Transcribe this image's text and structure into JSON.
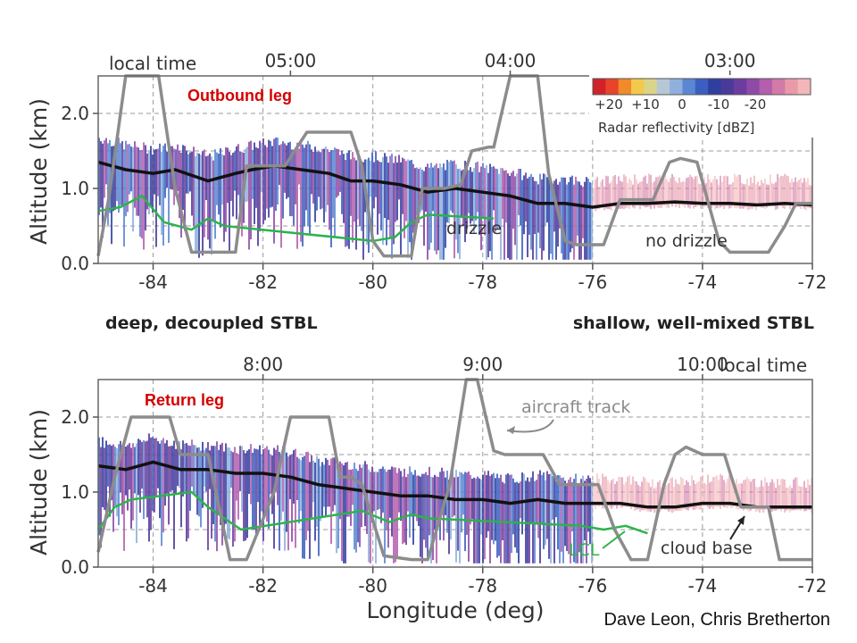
{
  "credit": "Dave Leon, Chris Bretherton",
  "regimes": {
    "left": "deep, decoupled STBL",
    "right": "shallow, well-mixed STBL"
  },
  "colorbar": {
    "title": "Radar reflectivity [dBZ]",
    "tick_labels": [
      "+20",
      "+10",
      "0",
      "-10",
      "-20"
    ],
    "colors": [
      "#d1222a",
      "#e8432b",
      "#f08a2a",
      "#f2c94c",
      "#d9d48a",
      "#b7c7d6",
      "#8fb0dc",
      "#5b86d2",
      "#3b5fc0",
      "#2f3fa0",
      "#4a3a9a",
      "#6b3d9e",
      "#8f4aa6",
      "#b35fae",
      "#d27aa8",
      "#e89aa8",
      "#f3b7b9"
    ]
  },
  "panels": [
    {
      "id": "outbound",
      "leg_label": "Outbound leg",
      "time_axis_label": "local time",
      "time_ticks": [
        {
          "lon": -81.5,
          "label": "05:00"
        },
        {
          "lon": -77.5,
          "label": "04:00"
        },
        {
          "lon": -73.5,
          "label": "03:00"
        }
      ],
      "annotations": {
        "drizzle": "drizzle",
        "no_drizzle": "no drizzle"
      }
    },
    {
      "id": "return",
      "leg_label": "Return leg",
      "time_axis_label": "local time",
      "time_ticks": [
        {
          "lon": -82.0,
          "label": "8:00"
        },
        {
          "lon": -78.0,
          "label": "9:00"
        },
        {
          "lon": -74.0,
          "label": "10:00"
        }
      ],
      "annotations": {
        "aircraft_track": "aircraft track",
        "lcl": "LCL",
        "cloud_base": "cloud base"
      }
    }
  ],
  "chart_data": [
    {
      "type": "line",
      "title": "Outbound leg",
      "xlabel": "",
      "ylabel": "Altitude (km)",
      "xlim": [
        -85,
        -72
      ],
      "ylim": [
        0.0,
        2.5
      ],
      "x_ticks": [
        -84,
        -82,
        -80,
        -78,
        -76,
        -74,
        -72
      ],
      "x_tick_labels": [
        "-84",
        "-82",
        "-80",
        "-78",
        "-76",
        "-74",
        "-72"
      ],
      "y_ticks": [
        0.0,
        1.0,
        2.0
      ],
      "y_tick_labels": [
        "0.0",
        "1.0",
        "2.0"
      ],
      "grid": "dashed",
      "series": [
        {
          "name": "aircraft track",
          "x": [
            -85.0,
            -84.8,
            -84.5,
            -84.3,
            -83.9,
            -83.6,
            -83.3,
            -82.5,
            -82.3,
            -81.8,
            -81.6,
            -81.2,
            -80.4,
            -80.2,
            -80.0,
            -79.8,
            -79.3,
            -79.1,
            -78.7,
            -78.4,
            -78.2,
            -77.9,
            -77.8,
            -77.5,
            -77.2,
            -77.0,
            -76.8,
            -76.5,
            -76.3,
            -75.8,
            -75.5,
            -75.3,
            -74.9,
            -74.6,
            -74.4,
            -74.1,
            -73.7,
            -73.5,
            -73.3,
            -72.8,
            -72.5,
            -72.3,
            -72.0
          ],
          "y": [
            0.1,
            0.9,
            2.6,
            2.6,
            2.6,
            1.0,
            0.15,
            0.15,
            1.3,
            1.3,
            1.3,
            1.75,
            1.75,
            1.3,
            0.3,
            0.1,
            0.1,
            1.0,
            1.0,
            1.05,
            1.5,
            1.55,
            1.55,
            2.6,
            2.6,
            2.6,
            1.2,
            0.3,
            0.25,
            0.25,
            0.85,
            0.85,
            0.85,
            1.35,
            1.4,
            1.35,
            0.3,
            0.15,
            0.15,
            0.15,
            0.5,
            0.8,
            0.8
          ]
        },
        {
          "name": "cloud base",
          "x": [
            -85.0,
            -84.5,
            -84.0,
            -83.6,
            -83.0,
            -82.5,
            -82.2,
            -81.8,
            -81.3,
            -80.8,
            -80.4,
            -80.0,
            -79.5,
            -79.0,
            -78.5,
            -78.0,
            -77.5,
            -77.0,
            -76.5,
            -76.0,
            -75.5,
            -75.0,
            -74.5,
            -74.0,
            -73.5,
            -73.0,
            -72.5,
            -72.0
          ],
          "y": [
            1.35,
            1.25,
            1.2,
            1.25,
            1.1,
            1.2,
            1.25,
            1.3,
            1.25,
            1.2,
            1.1,
            1.1,
            1.05,
            0.95,
            1.0,
            0.95,
            0.9,
            0.8,
            0.8,
            0.75,
            0.8,
            0.8,
            0.82,
            0.8,
            0.8,
            0.78,
            0.8,
            0.78
          ]
        },
        {
          "name": "LCL",
          "x": [
            -85.0,
            -84.6,
            -84.2,
            -83.8,
            -83.3,
            -83.0,
            -82.7,
            -80.0,
            -79.6,
            -79.3,
            -79.0,
            -77.8
          ],
          "y": [
            0.7,
            0.75,
            0.9,
            0.55,
            0.45,
            0.6,
            0.5,
            0.3,
            0.35,
            0.55,
            0.65,
            0.6
          ]
        }
      ]
    },
    {
      "type": "line",
      "title": "Return leg",
      "xlabel": "Longitude (deg)",
      "ylabel": "Altitude (km)",
      "xlim": [
        -85,
        -72
      ],
      "ylim": [
        0.0,
        2.5
      ],
      "x_ticks": [
        -84,
        -82,
        -80,
        -78,
        -76,
        -74,
        -72
      ],
      "x_tick_labels": [
        "-84",
        "-82",
        "-80",
        "-78",
        "-76",
        "-74",
        "-72"
      ],
      "y_ticks": [
        0.0,
        1.0,
        2.0
      ],
      "y_tick_labels": [
        "0.0",
        "1.0",
        "2.0"
      ],
      "grid": "dashed",
      "series": [
        {
          "name": "aircraft track",
          "x": [
            -85.0,
            -84.7,
            -84.4,
            -83.7,
            -83.5,
            -83.0,
            -82.6,
            -82.3,
            -81.8,
            -81.5,
            -81.3,
            -80.8,
            -80.6,
            -80.4,
            -80.2,
            -79.8,
            -79.3,
            -79.0,
            -78.6,
            -78.3,
            -78.1,
            -77.8,
            -77.6,
            -77.4,
            -76.9,
            -76.6,
            -76.4,
            -75.9,
            -75.6,
            -75.3,
            -75.0,
            -74.7,
            -74.5,
            -74.3,
            -74.0,
            -73.6,
            -73.3,
            -73.1,
            -72.8,
            -72.6,
            -72.3,
            -72.0
          ],
          "y": [
            0.2,
            1.2,
            2.0,
            2.0,
            1.5,
            1.5,
            0.1,
            0.1,
            1.0,
            2.0,
            2.0,
            2.0,
            1.2,
            1.2,
            1.1,
            0.15,
            0.1,
            0.1,
            1.1,
            2.55,
            2.5,
            1.55,
            1.5,
            1.5,
            1.5,
            1.1,
            1.1,
            1.1,
            0.5,
            0.1,
            0.1,
            1.1,
            1.5,
            1.6,
            1.5,
            1.5,
            0.8,
            0.8,
            0.8,
            0.1,
            0.1,
            0.1
          ]
        },
        {
          "name": "cloud base",
          "x": [
            -85.0,
            -84.5,
            -84.0,
            -83.5,
            -83.0,
            -82.5,
            -82.0,
            -81.5,
            -81.0,
            -80.5,
            -80.0,
            -79.5,
            -79.0,
            -78.5,
            -78.0,
            -77.5,
            -77.0,
            -76.5,
            -76.0,
            -75.5,
            -75.0,
            -74.5,
            -74.0,
            -73.5,
            -73.0,
            -72.5,
            -72.0
          ],
          "y": [
            1.35,
            1.3,
            1.4,
            1.3,
            1.3,
            1.25,
            1.25,
            1.2,
            1.1,
            1.05,
            1.0,
            0.95,
            0.95,
            0.9,
            0.9,
            0.85,
            0.9,
            0.85,
            0.85,
            0.85,
            0.8,
            0.8,
            0.85,
            0.85,
            0.8,
            0.8,
            0.8
          ]
        },
        {
          "name": "LCL",
          "x": [
            -85.0,
            -84.7,
            -84.4,
            -83.3,
            -83.0,
            -82.7,
            -82.4,
            -80.2,
            -79.7,
            -79.3,
            -79.0,
            -76.2,
            -75.8,
            -75.4,
            -75.0
          ],
          "y": [
            0.5,
            0.8,
            0.9,
            1.0,
            0.8,
            0.65,
            0.5,
            0.75,
            0.6,
            0.7,
            0.65,
            0.55,
            0.5,
            0.55,
            0.45
          ]
        }
      ]
    }
  ]
}
